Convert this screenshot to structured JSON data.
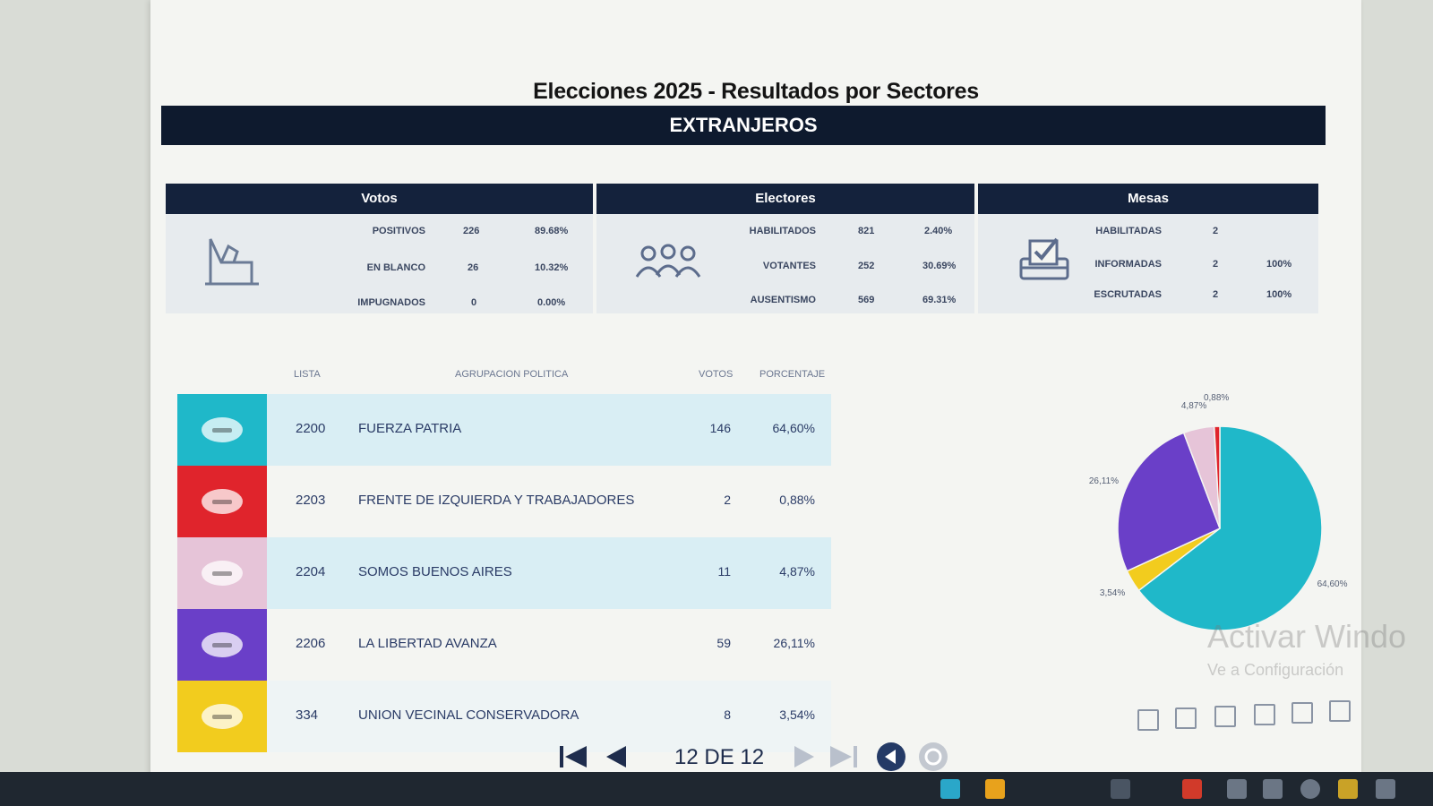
{
  "report": {
    "title": "Elecciones 2025 - Resultados por Sectores",
    "sector": "EXTRANJEROS"
  },
  "summary": {
    "votos": {
      "title": "Votos",
      "icon": "ballot-box-icon",
      "rows": [
        {
          "label": "POSITIVOS",
          "value": "226",
          "pct": "89.68%"
        },
        {
          "label": "EN BLANCO",
          "value": "26",
          "pct": "10.32%"
        },
        {
          "label": "IMPUGNADOS",
          "value": "0",
          "pct": "0.00%"
        }
      ]
    },
    "electores": {
      "title": "Electores",
      "icon": "people-group-icon",
      "rows": [
        {
          "label": "HABILITADOS",
          "value": "821",
          "pct": "2.40%"
        },
        {
          "label": "VOTANTES",
          "value": "252",
          "pct": "30.69%"
        },
        {
          "label": "AUSENTISMO",
          "value": "569",
          "pct": "69.31%"
        }
      ]
    },
    "mesas": {
      "title": "Mesas",
      "icon": "ballot-check-icon",
      "rows": [
        {
          "label": "HABILITADAS",
          "value": "2",
          "pct": ""
        },
        {
          "label": "INFORMADAS",
          "value": "2",
          "pct": "100%"
        },
        {
          "label": "ESCRUTADAS",
          "value": "2",
          "pct": "100%"
        }
      ]
    }
  },
  "table": {
    "headers": {
      "lista": "LISTA",
      "agrupacion": "AGRUPACION POLITICA",
      "votos": "VOTOS",
      "porcentaje": "PORCENTAJE"
    },
    "rows": [
      {
        "lista": "2200",
        "name": "FUERZA PATRIA",
        "votos": "146",
        "pct": "64,60%",
        "color": "#1fb8c9"
      },
      {
        "lista": "2203",
        "name": "FRENTE DE IZQUIERDA Y TRABAJADORES",
        "votos": "2",
        "pct": "0,88%",
        "color": "#e0242c"
      },
      {
        "lista": "2204",
        "name": "SOMOS BUENOS AIRES",
        "votos": "11",
        "pct": "4,87%",
        "color": "#e6c4d8"
      },
      {
        "lista": "2206",
        "name": "LA LIBERTAD AVANZA",
        "votos": "59",
        "pct": "26,11%",
        "color": "#6a3fc8"
      },
      {
        "lista": "334",
        "name": "UNION VECINAL CONSERVADORA",
        "votos": "8",
        "pct": "3,54%",
        "color": "#f2cc1e"
      }
    ]
  },
  "chart_data": {
    "type": "pie",
    "slices": [
      {
        "label": "64,60%",
        "value": 64.6,
        "color": "#1fb8c9"
      },
      {
        "label": "3,54%",
        "value": 3.54,
        "color": "#f2cc1e"
      },
      {
        "label": "26,11%",
        "value": 26.11,
        "color": "#6a3fc8"
      },
      {
        "label": "4,87%",
        "value": 4.87,
        "color": "#e6c4d8"
      },
      {
        "label": "0,88%",
        "value": 0.88,
        "color": "#e0242c"
      }
    ]
  },
  "pager": {
    "page_text": "12 DE 12",
    "first_icon": "first-page-icon",
    "prev_icon": "previous-page-icon",
    "next_icon": "next-page-icon",
    "last_icon": "last-page-icon",
    "back_icon": "back-circle-icon",
    "refresh_icon": "refresh-icon"
  },
  "watermark": {
    "line1": "Activar Windo",
    "line2": "Ve a Configuración"
  }
}
